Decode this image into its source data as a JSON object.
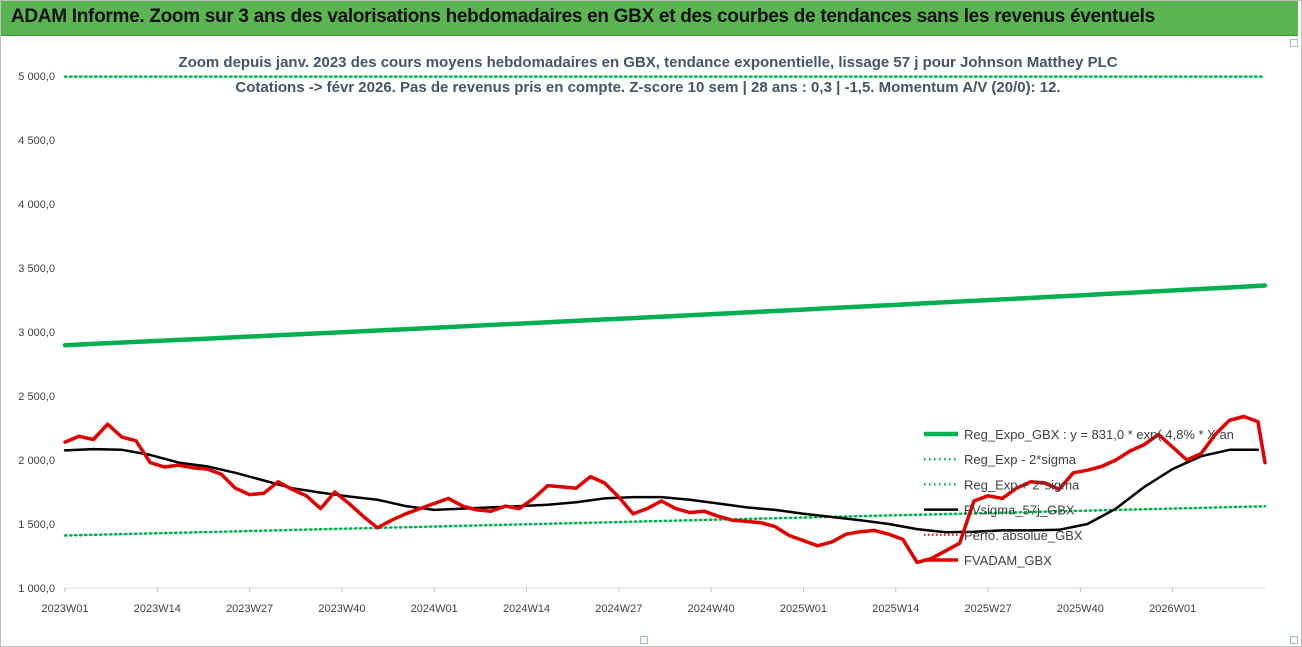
{
  "header": {
    "title": "ADAM Informe. Zoom sur 3 ans des valorisations hebdomadaires en GBX et des courbes de tendances sans les revenus éventuels"
  },
  "colors": {
    "header_bg": "#5ab550",
    "reg_expo": "#00b050",
    "sigma_lines": "#00b050",
    "fvsigma": "#000000",
    "fvadam": "#e00000",
    "perfo": "#ff0000"
  },
  "chart_data": {
    "type": "line",
    "title_lines": [
      "Zoom depuis janv. 2023 des cours moyens hebdomadaires en GBX, tendance exponentielle, lissage 57 j pour Johnson Matthey PLC",
      "Cotations -> févr 2026. Pas de revenus pris en compte. Z-score 10 sem | 28 ans : 0,3 | -1,5. Momentum A/V (20/0): 12."
    ],
    "ylim": [
      1000,
      5000
    ],
    "y_ticks": [
      "1 000,0",
      "1 500,0",
      "2 000,0",
      "2 500,0",
      "3 000,0",
      "3 500,0",
      "4 000,0",
      "4 500,0",
      "5 000,0"
    ],
    "x_ticks": [
      "2023W01",
      "2023W14",
      "2023W27",
      "2023W40",
      "2024W01",
      "2024W14",
      "2024W27",
      "2024W40",
      "2025W01",
      "2025W14",
      "2025W27",
      "2025W40",
      "2026W01"
    ],
    "x_range_weeks": [
      0,
      169
    ],
    "series": [
      {
        "name": "Reg_Expo_GBX : y = 831,0 * exp( 4,8% * X an",
        "style": "solid-thick",
        "x": [
          0,
          169
        ],
        "y": [
          2897,
          3363
        ]
      },
      {
        "name": "Reg_Exp - 2*sigma",
        "style": "dotted",
        "x": [
          0,
          169
        ],
        "y": [
          1410,
          1638
        ]
      },
      {
        "name": "Reg_Exp + 2*sigma",
        "style": "dotted",
        "x": [
          0,
          169
        ],
        "y": [
          4995,
          4995
        ]
      },
      {
        "name": "FVsigma_57j_GBX",
        "style": "solid-black",
        "x": [
          0,
          4,
          8,
          12,
          16,
          20,
          24,
          28,
          32,
          36,
          40,
          44,
          48,
          52,
          56,
          60,
          64,
          68,
          72,
          76,
          80,
          84,
          88,
          92,
          96,
          100,
          104,
          108,
          112,
          116,
          120,
          124,
          128,
          132,
          136,
          140,
          144,
          148,
          152,
          156,
          160,
          164,
          168
        ],
        "y": [
          2075,
          2085,
          2080,
          2040,
          1980,
          1950,
          1900,
          1840,
          1780,
          1745,
          1715,
          1690,
          1640,
          1610,
          1620,
          1630,
          1640,
          1650,
          1670,
          1700,
          1710,
          1710,
          1690,
          1660,
          1630,
          1610,
          1580,
          1555,
          1530,
          1500,
          1460,
          1435,
          1440,
          1450,
          1450,
          1455,
          1500,
          1620,
          1790,
          1930,
          2030,
          2080,
          2080
        ]
      },
      {
        "name": "Perfo. absolue_GBX",
        "style": "dotted-red",
        "x": [],
        "y": []
      },
      {
        "name": "FVADAM_GBX",
        "style": "solid-red",
        "x": [
          0,
          2,
          4,
          6,
          8,
          10,
          12,
          14,
          16,
          18,
          20,
          22,
          24,
          26,
          28,
          30,
          32,
          34,
          36,
          38,
          40,
          42,
          44,
          46,
          48,
          50,
          52,
          54,
          56,
          58,
          60,
          62,
          64,
          66,
          68,
          70,
          72,
          74,
          76,
          78,
          80,
          82,
          84,
          86,
          88,
          90,
          92,
          94,
          96,
          98,
          100,
          102,
          104,
          106,
          108,
          110,
          112,
          114,
          116,
          118,
          120,
          122,
          124,
          126,
          128,
          130,
          132,
          134,
          136,
          138,
          140,
          142,
          144,
          146,
          148,
          150,
          152,
          154,
          156,
          158,
          160,
          162,
          164,
          166,
          168,
          169
        ],
        "y": [
          2140,
          2185,
          2160,
          2280,
          2180,
          2150,
          1980,
          1945,
          1960,
          1940,
          1930,
          1890,
          1780,
          1730,
          1740,
          1830,
          1770,
          1720,
          1620,
          1750,
          1660,
          1560,
          1470,
          1530,
          1580,
          1620,
          1660,
          1700,
          1640,
          1610,
          1600,
          1640,
          1620,
          1700,
          1800,
          1790,
          1780,
          1870,
          1820,
          1710,
          1580,
          1620,
          1680,
          1620,
          1590,
          1600,
          1560,
          1530,
          1520,
          1510,
          1480,
          1410,
          1370,
          1330,
          1360,
          1420,
          1440,
          1450,
          1420,
          1380,
          1200,
          1230,
          1290,
          1350,
          1680,
          1720,
          1700,
          1780,
          1830,
          1820,
          1770,
          1900,
          1920,
          1950,
          2000,
          2070,
          2120,
          2200,
          2100,
          2000,
          2050,
          2200,
          2310,
          2340,
          2300,
          1980
        ]
      }
    ],
    "legend_position": "right",
    "grid": "none"
  }
}
